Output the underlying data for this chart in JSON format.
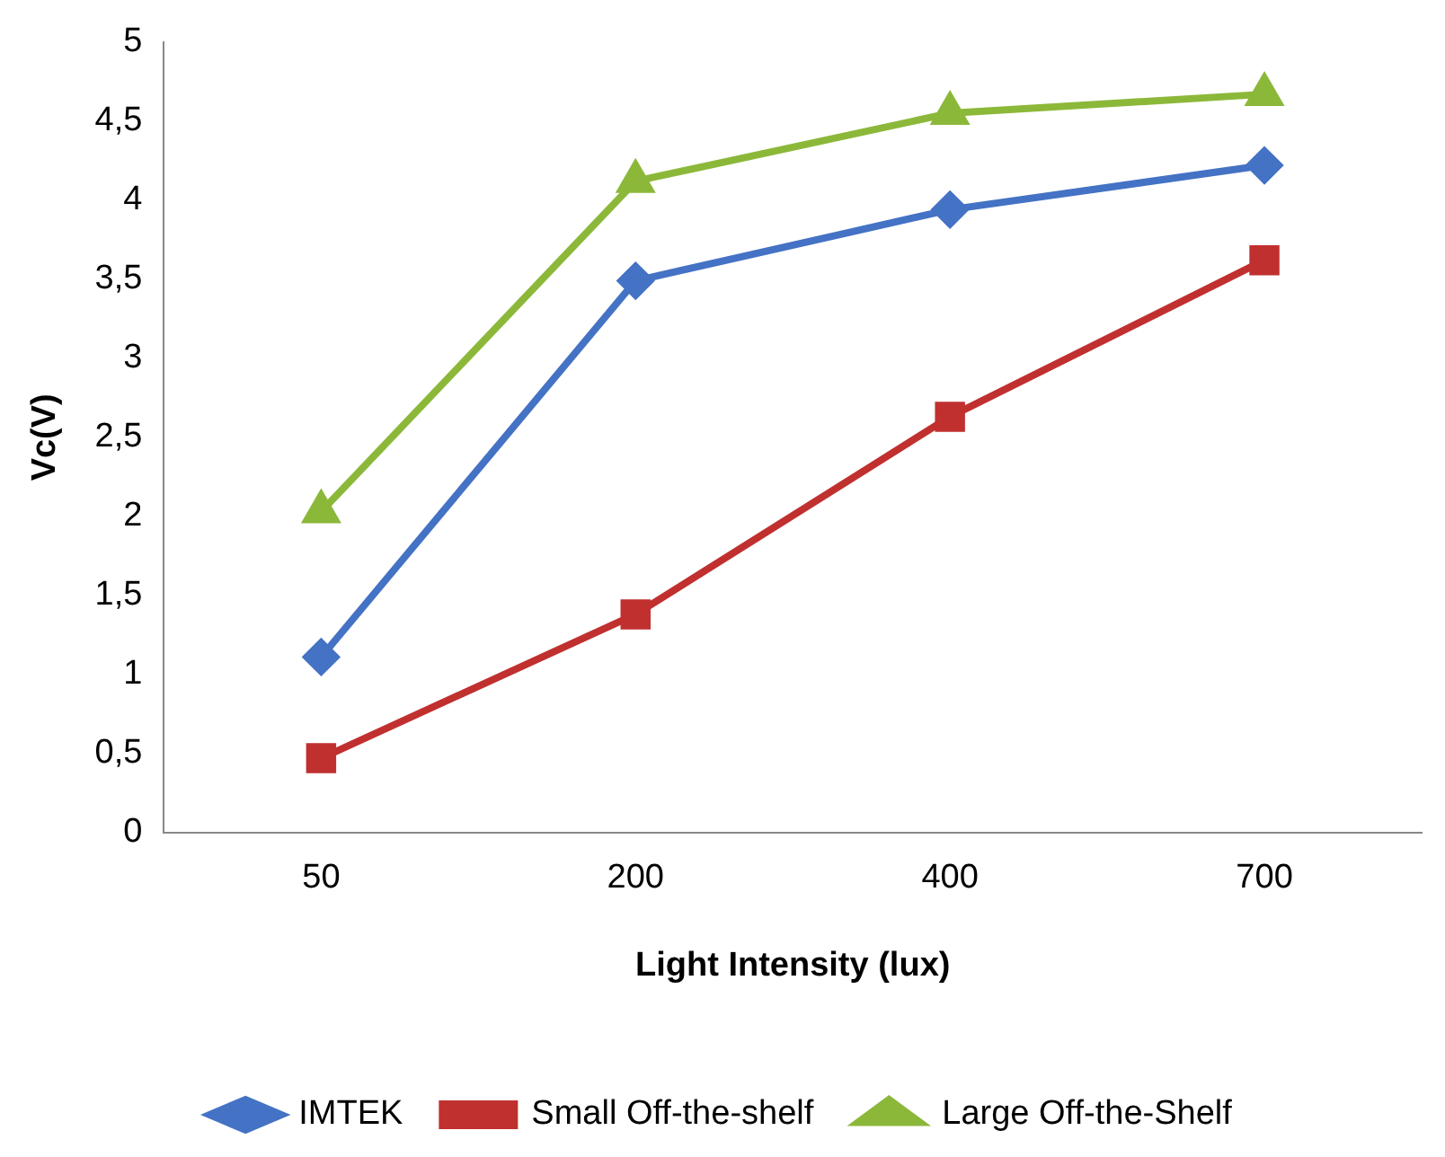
{
  "chart_data": {
    "type": "line",
    "xlabel": "Light Intensity (lux)",
    "ylabel": "Vc(V)",
    "categories": [
      "50",
      "200",
      "400",
      "700"
    ],
    "series": [
      {
        "name": "IMTEK",
        "color": "#4472c4",
        "marker": "diamond",
        "values": [
          1.11,
          3.49,
          3.94,
          4.22
        ]
      },
      {
        "name": "Small Off-the-shelf",
        "color": "#c0302f",
        "marker": "square",
        "values": [
          0.47,
          1.38,
          2.63,
          3.62
        ]
      },
      {
        "name": "Large Off-the-Shelf",
        "color": "#8cb83a",
        "marker": "triangle",
        "values": [
          2.03,
          4.12,
          4.55,
          4.67
        ]
      }
    ],
    "ylim": [
      0,
      5
    ],
    "yticks": [
      0,
      {
        "value": 0.5,
        "label": "0,5"
      },
      1,
      {
        "value": 1.5,
        "label": "1,5"
      },
      2,
      {
        "value": 2.5,
        "label": "2,5"
      },
      3,
      {
        "value": 3.5,
        "label": "3,5"
      },
      4,
      {
        "value": 4.5,
        "label": "4,5"
      },
      5
    ],
    "grid": false,
    "legend": "bottom"
  }
}
